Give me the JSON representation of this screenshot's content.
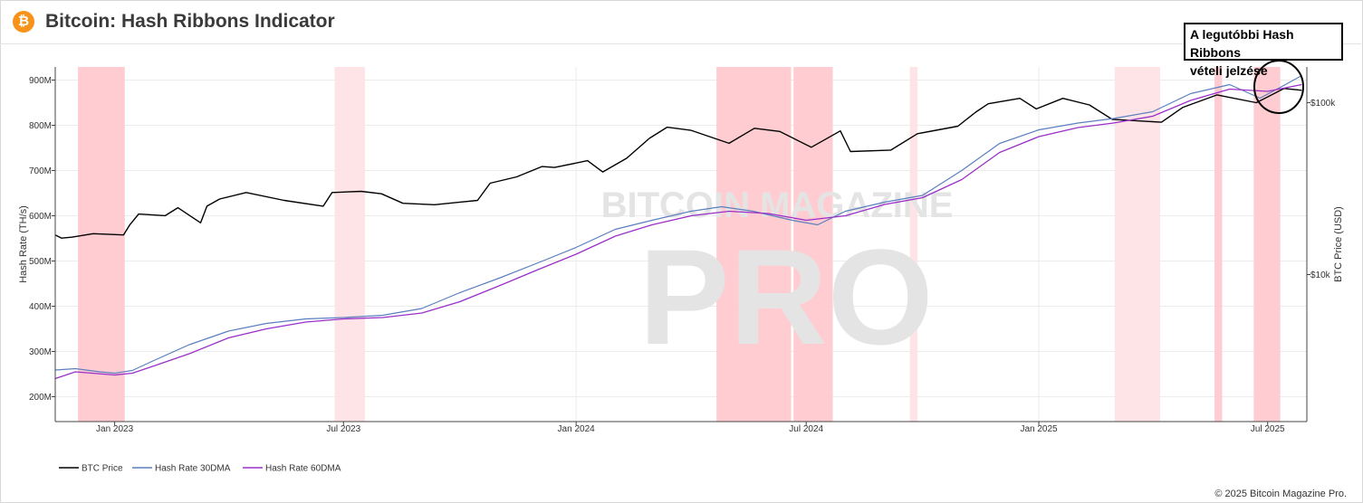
{
  "header": {
    "logo_symbol": "₿",
    "title": "Bitcoin: Hash Ribbons Indicator"
  },
  "annotation": {
    "text_line1": "A legutóbbi Hash Ribbons",
    "text_line2": "vételi jelzése"
  },
  "watermark": {
    "line1": "BITCOIN MAGAZINE",
    "line2": "PRO"
  },
  "footer": {
    "copyright": "© 2025 Bitcoin Magazine Pro."
  },
  "colors": {
    "btc": "#000000",
    "hr30": "#5b7fbf",
    "hr60": "#9b30c8",
    "band": "#ffc9cf",
    "band_light": "#ffe3e6"
  },
  "chart_data": {
    "type": "line",
    "x_axis": {
      "type": "date",
      "range": [
        "2022-11-15",
        "2025-08-01"
      ],
      "ticks": [
        "Jan 2023",
        "Jul 2023",
        "Jan 2024",
        "Jul 2024",
        "Jan 2025",
        "Jul 2025"
      ]
    },
    "y_left": {
      "label": "Hash Rate (TH/s)",
      "range_M": [
        145,
        930
      ],
      "ticks": [
        "200M",
        "300M",
        "400M",
        "500M",
        "600M",
        "700M",
        "800M",
        "900M"
      ]
    },
    "y_right": {
      "label": "BTC Price (USD)",
      "scale": "log",
      "ticks": [
        "$10k",
        "$100k"
      ]
    },
    "grid": true,
    "legend_position": "bottom-left",
    "capitulation_bands": [
      {
        "start": "2022-12-03",
        "end": "2023-01-09"
      },
      {
        "start": "2023-06-24",
        "end": "2023-07-18",
        "light": true
      },
      {
        "start": "2024-04-21",
        "end": "2024-06-19"
      },
      {
        "start": "2024-06-21",
        "end": "2024-07-22"
      },
      {
        "start": "2024-09-21",
        "end": "2024-09-27",
        "light": true
      },
      {
        "start": "2025-03-02",
        "end": "2025-04-07",
        "light": true
      },
      {
        "start": "2025-05-20",
        "end": "2025-05-26"
      },
      {
        "start": "2025-06-20",
        "end": "2025-07-11"
      }
    ],
    "series": [
      {
        "name": "BTC Price",
        "key": "btc",
        "axis": "right",
        "points": [
          [
            "2022-11-15",
            17000
          ],
          [
            "2022-11-20",
            16300
          ],
          [
            "2022-11-28",
            16500
          ],
          [
            "2022-12-15",
            17300
          ],
          [
            "2023-01-08",
            17000
          ],
          [
            "2023-01-13",
            19500
          ],
          [
            "2023-01-20",
            22500
          ],
          [
            "2023-02-10",
            22000
          ],
          [
            "2023-02-20",
            24500
          ],
          [
            "2023-03-10",
            20000
          ],
          [
            "2023-03-15",
            25000
          ],
          [
            "2023-03-25",
            27500
          ],
          [
            "2023-04-15",
            30000
          ],
          [
            "2023-05-15",
            27000
          ],
          [
            "2023-06-15",
            25000
          ],
          [
            "2023-06-22",
            30000
          ],
          [
            "2023-07-15",
            30500
          ],
          [
            "2023-07-31",
            29500
          ],
          [
            "2023-08-17",
            26000
          ],
          [
            "2023-09-11",
            25500
          ],
          [
            "2023-10-15",
            27000
          ],
          [
            "2023-10-25",
            34000
          ],
          [
            "2023-11-15",
            37000
          ],
          [
            "2023-12-05",
            42500
          ],
          [
            "2023-12-15",
            42000
          ],
          [
            "2024-01-10",
            46000
          ],
          [
            "2024-01-22",
            39500
          ],
          [
            "2024-02-10",
            47500
          ],
          [
            "2024-02-28",
            62000
          ],
          [
            "2024-03-13",
            72000
          ],
          [
            "2024-04-01",
            69000
          ],
          [
            "2024-05-01",
            58000
          ],
          [
            "2024-05-21",
            71000
          ],
          [
            "2024-06-10",
            68000
          ],
          [
            "2024-07-05",
            55000
          ],
          [
            "2024-07-28",
            68500
          ],
          [
            "2024-08-05",
            52000
          ],
          [
            "2024-09-06",
            53000
          ],
          [
            "2024-09-27",
            66000
          ],
          [
            "2024-10-29",
            73000
          ],
          [
            "2024-11-12",
            88000
          ],
          [
            "2024-11-22",
            98500
          ],
          [
            "2024-12-17",
            106000
          ],
          [
            "2024-12-30",
            92000
          ],
          [
            "2025-01-20",
            106000
          ],
          [
            "2025-02-10",
            97000
          ],
          [
            "2025-02-28",
            80000
          ],
          [
            "2025-04-08",
            77000
          ],
          [
            "2025-04-25",
            94000
          ],
          [
            "2025-05-22",
            111000
          ],
          [
            "2025-06-22",
            100000
          ],
          [
            "2025-07-14",
            121000
          ],
          [
            "2025-07-28",
            118000
          ]
        ]
      },
      {
        "name": "Hash Rate 30DMA",
        "key": "hr30",
        "axis": "left",
        "points": [
          [
            "2022-11-15",
            259
          ],
          [
            "2022-12-01",
            262
          ],
          [
            "2022-12-20",
            255
          ],
          [
            "2023-01-01",
            252
          ],
          [
            "2023-01-15",
            258
          ],
          [
            "2023-02-01",
            280
          ],
          [
            "2023-03-01",
            315
          ],
          [
            "2023-04-01",
            345
          ],
          [
            "2023-05-01",
            362
          ],
          [
            "2023-06-01",
            372
          ],
          [
            "2023-07-01",
            375
          ],
          [
            "2023-08-01",
            380
          ],
          [
            "2023-09-01",
            395
          ],
          [
            "2023-10-01",
            430
          ],
          [
            "2023-11-01",
            462
          ],
          [
            "2023-12-01",
            495
          ],
          [
            "2024-01-01",
            530
          ],
          [
            "2024-02-01",
            570
          ],
          [
            "2024-03-01",
            590
          ],
          [
            "2024-04-01",
            610
          ],
          [
            "2024-04-25",
            620
          ],
          [
            "2024-05-20",
            610
          ],
          [
            "2024-06-20",
            590
          ],
          [
            "2024-07-10",
            580
          ],
          [
            "2024-08-01",
            610
          ],
          [
            "2024-09-01",
            630
          ],
          [
            "2024-10-01",
            645
          ],
          [
            "2024-11-01",
            700
          ],
          [
            "2024-12-01",
            760
          ],
          [
            "2025-01-01",
            790
          ],
          [
            "2025-02-01",
            805
          ],
          [
            "2025-03-01",
            815
          ],
          [
            "2025-04-01",
            830
          ],
          [
            "2025-05-01",
            870
          ],
          [
            "2025-06-01",
            890
          ],
          [
            "2025-06-25",
            860
          ],
          [
            "2025-07-15",
            890
          ],
          [
            "2025-07-28",
            910
          ]
        ]
      },
      {
        "name": "Hash Rate 60DMA",
        "key": "hr60",
        "axis": "left",
        "points": [
          [
            "2022-11-15",
            240
          ],
          [
            "2022-12-01",
            255
          ],
          [
            "2023-01-01",
            248
          ],
          [
            "2023-01-15",
            252
          ],
          [
            "2023-02-01",
            268
          ],
          [
            "2023-03-01",
            295
          ],
          [
            "2023-04-01",
            330
          ],
          [
            "2023-05-01",
            350
          ],
          [
            "2023-06-01",
            365
          ],
          [
            "2023-07-01",
            372
          ],
          [
            "2023-08-01",
            375
          ],
          [
            "2023-09-01",
            385
          ],
          [
            "2023-10-01",
            410
          ],
          [
            "2023-11-01",
            445
          ],
          [
            "2023-12-01",
            480
          ],
          [
            "2024-01-01",
            515
          ],
          [
            "2024-02-01",
            555
          ],
          [
            "2024-03-01",
            580
          ],
          [
            "2024-04-01",
            600
          ],
          [
            "2024-05-01",
            610
          ],
          [
            "2024-06-01",
            605
          ],
          [
            "2024-07-01",
            590
          ],
          [
            "2024-08-01",
            600
          ],
          [
            "2024-09-01",
            625
          ],
          [
            "2024-10-01",
            640
          ],
          [
            "2024-11-01",
            680
          ],
          [
            "2024-12-01",
            740
          ],
          [
            "2025-01-01",
            775
          ],
          [
            "2025-02-01",
            795
          ],
          [
            "2025-03-01",
            805
          ],
          [
            "2025-04-01",
            820
          ],
          [
            "2025-05-01",
            855
          ],
          [
            "2025-06-01",
            880
          ],
          [
            "2025-07-01",
            875
          ],
          [
            "2025-07-28",
            890
          ]
        ]
      }
    ]
  }
}
